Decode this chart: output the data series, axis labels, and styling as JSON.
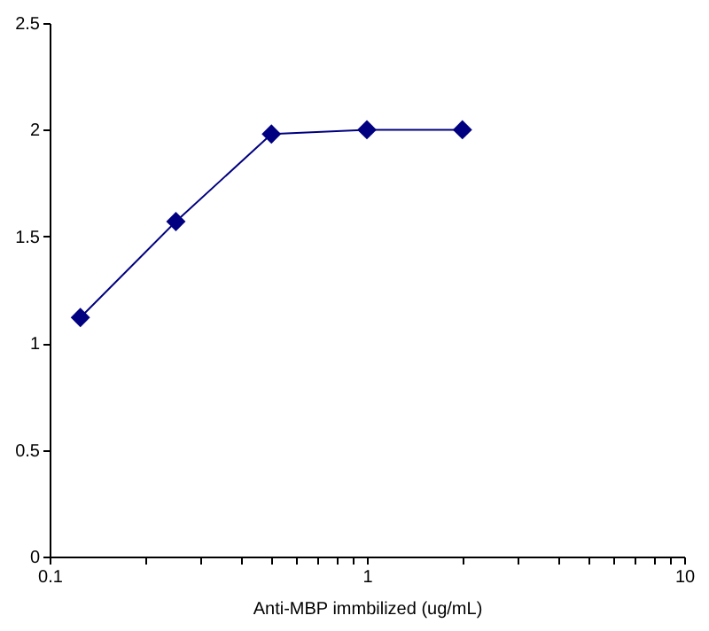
{
  "chart_data": {
    "type": "line",
    "xlabel": "Anti-MBP immbilized (ug/mL)",
    "log": "x",
    "marker": "diamond",
    "line_style": "solid",
    "grid": false,
    "legend": false,
    "x": [
      0.125,
      0.25,
      0.5,
      1,
      2
    ],
    "series": [
      {
        "color": "#000080",
        "values": [
          1.12,
          1.57,
          1.98,
          2.0,
          2.0
        ]
      }
    ],
    "xlim": [
      0.1,
      10
    ],
    "xticks": [
      0.1,
      {
        "value": 0.2,
        "label": null
      },
      {
        "value": 0.3,
        "label": null
      },
      {
        "value": 0.4,
        "label": null
      },
      {
        "value": 0.5,
        "label": null
      },
      {
        "value": 0.6,
        "label": null
      },
      {
        "value": 0.7,
        "label": null
      },
      {
        "value": 0.8,
        "label": null
      },
      {
        "value": 0.9,
        "label": null
      },
      1,
      {
        "value": 2,
        "label": null
      },
      {
        "value": 3,
        "label": null
      },
      {
        "value": 4,
        "label": null
      },
      {
        "value": 5,
        "label": null
      },
      {
        "value": 6,
        "label": null
      },
      {
        "value": 7,
        "label": null
      },
      {
        "value": 8,
        "label": null
      },
      {
        "value": 9,
        "label": null
      },
      10
    ],
    "ylim": [
      0,
      2.5
    ],
    "yticks": [
      0,
      0.5,
      1,
      1.5,
      2,
      2.5
    ]
  }
}
